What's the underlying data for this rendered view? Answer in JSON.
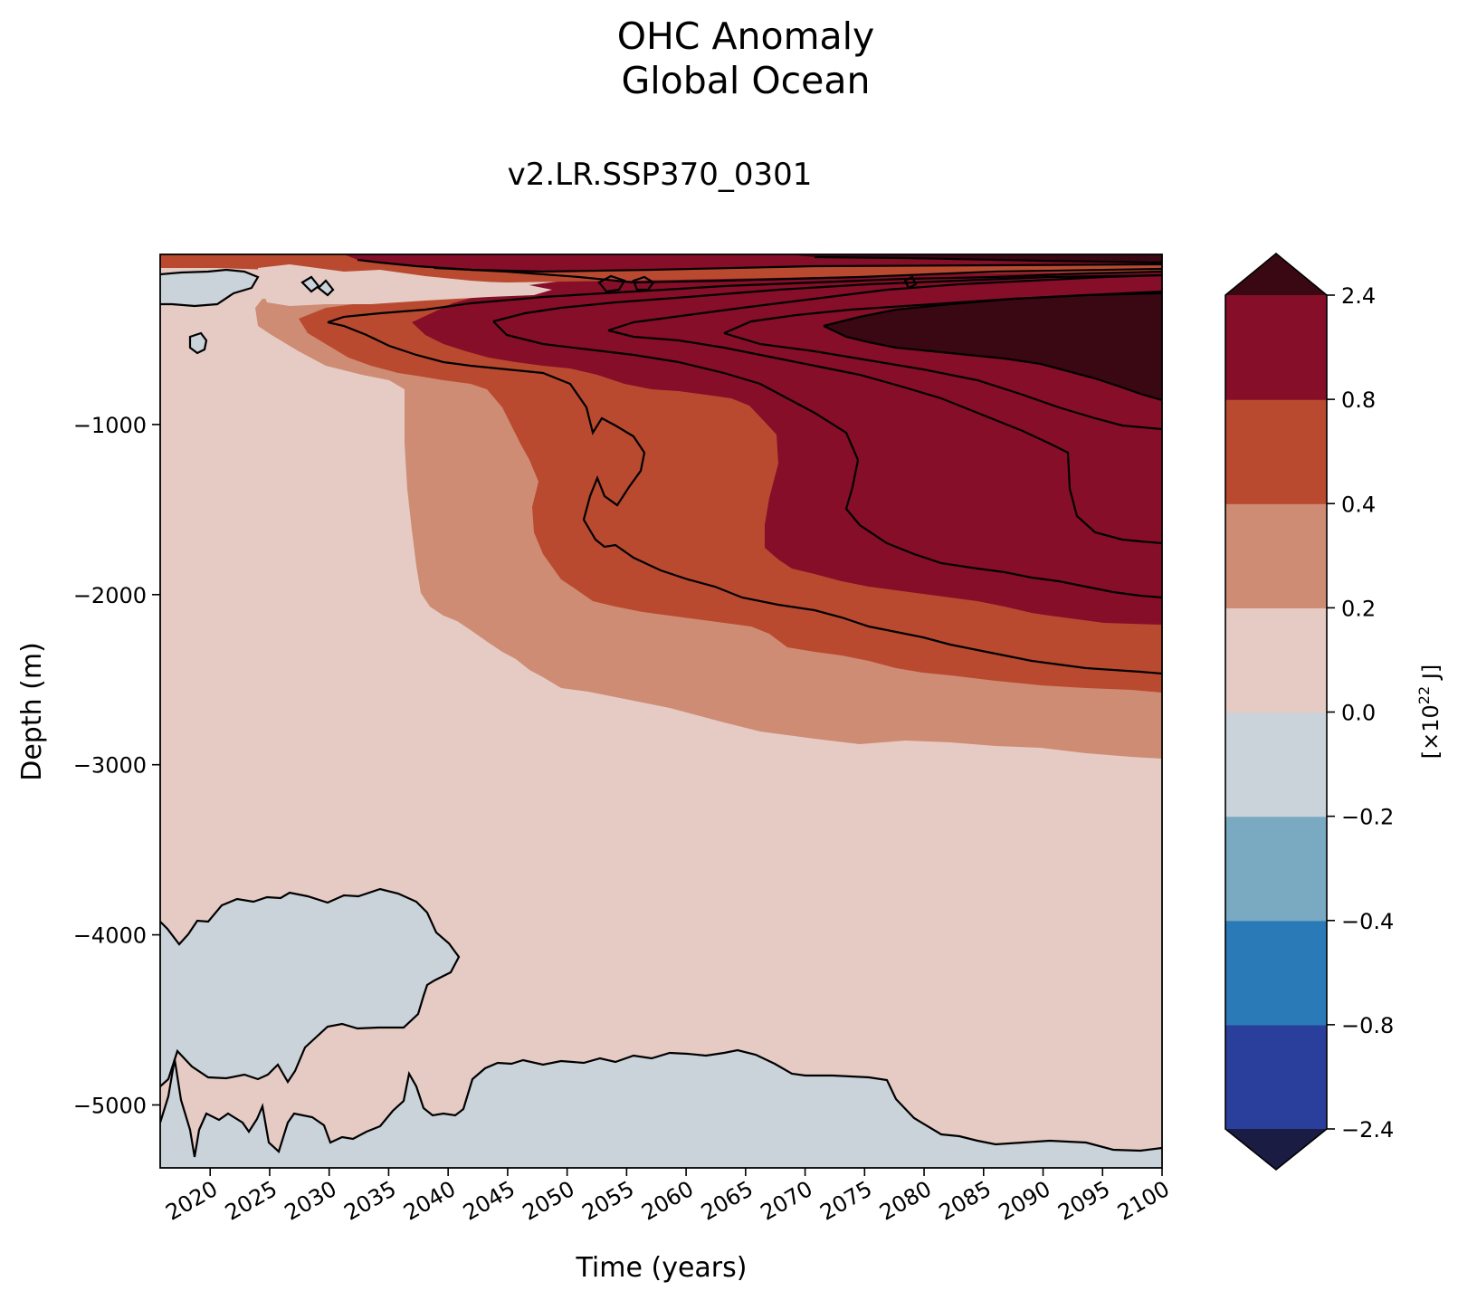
{
  "chart_data": {
    "type": "heatmap",
    "title": "OHC Anomaly",
    "subtitle": "Global Ocean",
    "panel_title": "v2.LR.SSP370_0301",
    "xlabel": "Time (years)",
    "ylabel": "Depth (m)",
    "xlim": [
      2015.8,
      2100
    ],
    "ylim": [
      -5370,
      0
    ],
    "x_ticks": [
      "2020",
      "2025",
      "2030",
      "2035",
      "2040",
      "2045",
      "2050",
      "2055",
      "2060",
      "2065",
      "2070",
      "2075",
      "2080",
      "2085",
      "2090",
      "2095",
      "2100"
    ],
    "y_ticks": [
      "−1000",
      "−2000",
      "−3000",
      "−4000",
      "−5000"
    ],
    "colorbar": {
      "label_prefix": "[×10",
      "label_exp": "22",
      "label_suffix": " J]",
      "ticks": [
        "2.4",
        "0.8",
        "0.4",
        "0.2",
        "0.0",
        "−0.2",
        "−0.4",
        "−0.8",
        "−2.4"
      ],
      "levels": [
        -2.4,
        -0.8,
        -0.4,
        -0.2,
        0.0,
        0.2,
        0.4,
        0.8,
        2.4
      ],
      "colors": [
        "#2a3f9c",
        "#2a7ab8",
        "#79aac1",
        "#cad3da",
        "#e6cbc5",
        "#cf8c74",
        "#b94a30",
        "#860e28"
      ],
      "under_color": "#1a1c44",
      "over_color": "#3a0812"
    },
    "regions": [
      {
        "name": "neg-deep-2015-2040",
        "value_range": [
          -0.2,
          0.0
        ],
        "x": [
          2015.8,
          2041
        ],
        "depth": [
          -4600,
          -3800
        ]
      },
      {
        "name": "neg-bottom",
        "value_range": [
          -0.2,
          0.0
        ],
        "x": [
          2015.8,
          2100
        ],
        "depth": [
          -5370,
          -4700
        ]
      },
      {
        "name": "neg-surface-2015-2020",
        "value_range": [
          -0.2,
          0.0
        ],
        "x": [
          2015.8,
          2021
        ],
        "depth": [
          -290,
          -130
        ]
      },
      {
        "name": "warm-0.2-0.4",
        "value_range": [
          0.2,
          0.4
        ],
        "x": [
          2023,
          2100
        ],
        "depth": [
          -2980,
          0
        ]
      },
      {
        "name": "warm-0.4-0.8",
        "value_range": [
          0.4,
          0.8
        ],
        "x": [
          2029,
          2100
        ],
        "depth": [
          -2600,
          0
        ]
      },
      {
        "name": "warm-0.8-2.4",
        "value_range": [
          0.8,
          2.4
        ],
        "x": [
          2037,
          2100
        ],
        "depth": [
          -2200,
          0
        ]
      },
      {
        "name": "warm-over-2.4",
        "value_range": [
          2.4,
          null
        ],
        "x": [
          2070,
          2100
        ],
        "depth": [
          -870,
          -180
        ]
      }
    ]
  }
}
